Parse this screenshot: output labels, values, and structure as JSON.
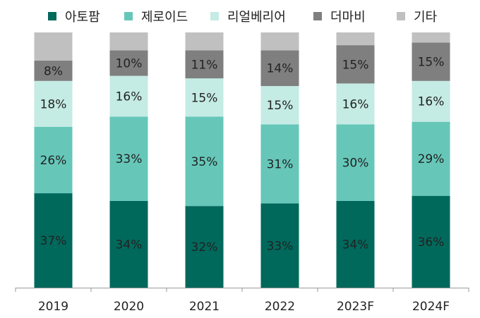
{
  "chart_data": {
    "type": "bar",
    "stacked": true,
    "normalized_percent": true,
    "categories": [
      "2019",
      "2020",
      "2021",
      "2022",
      "2023F",
      "2024F"
    ],
    "series": [
      {
        "name": "아토팜",
        "color": "#00695C",
        "values": [
          37,
          34,
          32,
          33,
          34,
          36
        ],
        "labels": [
          "37%",
          "34%",
          "32%",
          "33%",
          "34%",
          "36%"
        ]
      },
      {
        "name": "제로이드",
        "color": "#66C7B9",
        "values": [
          26,
          33,
          35,
          31,
          30,
          29
        ],
        "labels": [
          "26%",
          "33%",
          "35%",
          "31%",
          "30%",
          "29%"
        ]
      },
      {
        "name": "리얼베리어",
        "color": "#C4EBE4",
        "values": [
          18,
          16,
          15,
          15,
          16,
          16
        ],
        "labels": [
          "18%",
          "16%",
          "15%",
          "15%",
          "16%",
          "16%"
        ]
      },
      {
        "name": "더마비",
        "color": "#7F7F7F",
        "values": [
          8,
          10,
          11,
          14,
          15,
          15
        ],
        "labels": [
          "8%",
          "10%",
          "11%",
          "14%",
          "15%",
          "15%"
        ]
      },
      {
        "name": "기타",
        "color": "#C0C0C0",
        "values": [
          11,
          7,
          7,
          7,
          5,
          4
        ],
        "labels": [
          "",
          "",
          "",
          "",
          "",
          ""
        ]
      }
    ],
    "ylim": [
      0,
      100
    ],
    "grid": false,
    "legend_position": "top"
  }
}
